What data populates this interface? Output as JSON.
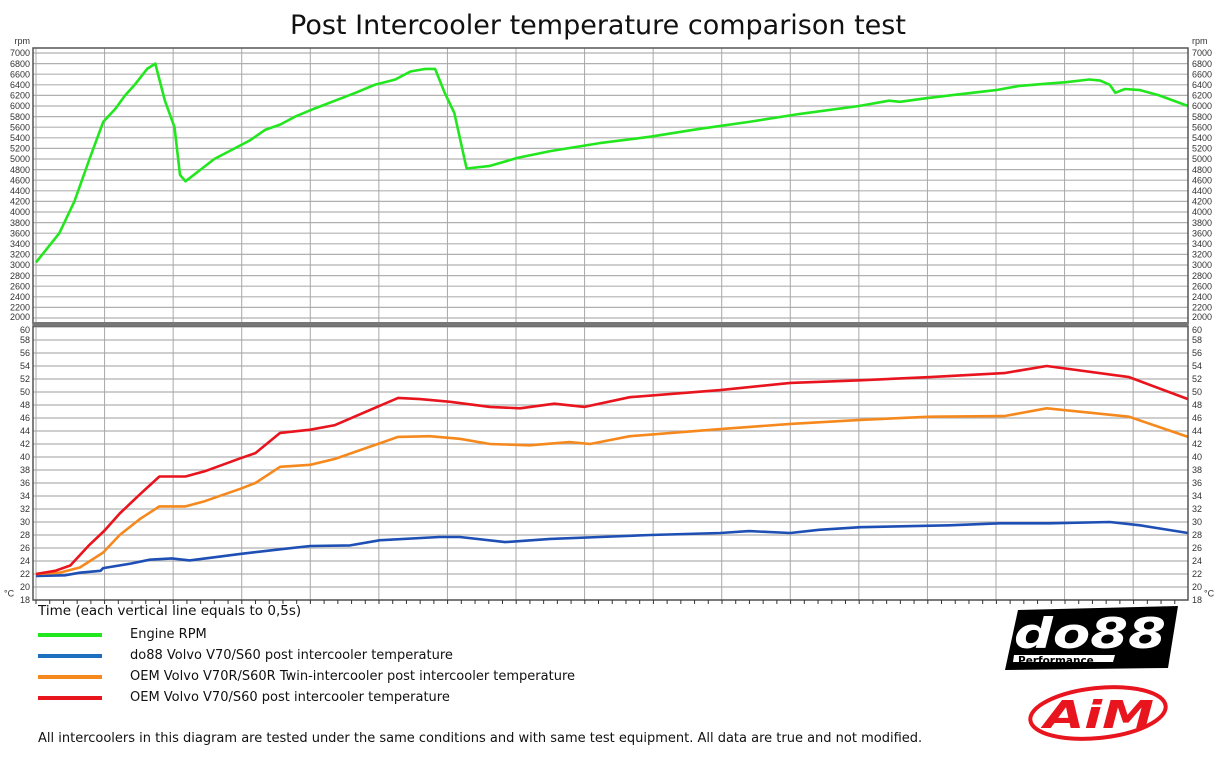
{
  "title": "Post Intercooler temperature comparison test",
  "footnote": "All intercoolers in this diagram are tested under the same conditions and with same test equipment. All data are true and not modified.",
  "logos": {
    "do88_main": "do88",
    "do88_sub": "Performance",
    "aim": "AiM"
  },
  "chart_data": [
    {
      "type": "line",
      "title": "Post Intercooler temperature comparison test",
      "xlabel": "Time (each vertical line equals to 0,5s)",
      "ylabel": "rpm",
      "xlim": [
        0,
        8.4
      ],
      "ylim": [
        2000,
        7000
      ],
      "ytick_step": 200,
      "xgrid_step": 0.5,
      "grid": true,
      "y_axis_both_sides": true,
      "series": [
        {
          "name": "Engine RPM",
          "color": "#22e61e",
          "points": [
            [
              0,
              3050
            ],
            [
              0.17,
              3600
            ],
            [
              0.28,
              4200
            ],
            [
              0.39,
              5000
            ],
            [
              0.49,
              5700
            ],
            [
              0.58,
              5950
            ],
            [
              0.65,
              6200
            ],
            [
              0.72,
              6400
            ],
            [
              0.81,
              6700
            ],
            [
              0.87,
              6800
            ],
            [
              0.9,
              6500
            ],
            [
              0.94,
              6100
            ],
            [
              1.01,
              5600
            ],
            [
              1.05,
              4700
            ],
            [
              1.09,
              4580
            ],
            [
              1.2,
              4800
            ],
            [
              1.3,
              5000
            ],
            [
              1.41,
              5150
            ],
            [
              1.56,
              5350
            ],
            [
              1.67,
              5550
            ],
            [
              1.78,
              5650
            ],
            [
              1.89,
              5800
            ],
            [
              2.03,
              5950
            ],
            [
              2.18,
              6100
            ],
            [
              2.33,
              6250
            ],
            [
              2.47,
              6400
            ],
            [
              2.62,
              6500
            ],
            [
              2.73,
              6650
            ],
            [
              2.84,
              6700
            ],
            [
              2.91,
              6700
            ],
            [
              2.98,
              6250
            ],
            [
              3.05,
              5870
            ],
            [
              3.14,
              4820
            ],
            [
              3.31,
              4870
            ],
            [
              3.51,
              5020
            ],
            [
              3.75,
              5150
            ],
            [
              4.11,
              5300
            ],
            [
              4.48,
              5420
            ],
            [
              4.84,
              5570
            ],
            [
              5.2,
              5700
            ],
            [
              5.57,
              5850
            ],
            [
              6.0,
              6000
            ],
            [
              6.22,
              6100
            ],
            [
              6.3,
              6080
            ],
            [
              6.5,
              6150
            ],
            [
              6.66,
              6200
            ],
            [
              7.0,
              6300
            ],
            [
              7.17,
              6380
            ],
            [
              7.37,
              6420
            ],
            [
              7.51,
              6450
            ],
            [
              7.68,
              6500
            ],
            [
              7.76,
              6480
            ],
            [
              7.83,
              6400
            ],
            [
              7.87,
              6250
            ],
            [
              7.94,
              6320
            ],
            [
              8.05,
              6300
            ],
            [
              8.19,
              6200
            ],
            [
              8.4,
              6000
            ]
          ]
        }
      ]
    },
    {
      "type": "line",
      "xlabel": "Time (each vertical line equals to 0,5s)",
      "ylabel": "°C",
      "xlim": [
        0,
        8.4
      ],
      "ylim": [
        18,
        60
      ],
      "ytick_step": 2,
      "xgrid_step": 0.5,
      "grid": true,
      "y_axis_both_sides": true,
      "series": [
        {
          "name": "do88 Volvo V70/S60 post intercooler temperature",
          "color": "#1e4fb4",
          "points": [
            [
              0,
              21.7
            ],
            [
              0.21,
              21.8
            ],
            [
              0.32,
              22.2
            ],
            [
              0.47,
              22.5
            ],
            [
              0.49,
              22.9
            ],
            [
              0.69,
              23.6
            ],
            [
              0.83,
              24.2
            ],
            [
              0.99,
              24.4
            ],
            [
              1.12,
              24.1
            ],
            [
              1.27,
              24.5
            ],
            [
              1.49,
              25.1
            ],
            [
              1.78,
              25.8
            ],
            [
              2.0,
              26.3
            ],
            [
              2.29,
              26.4
            ],
            [
              2.51,
              27.2
            ],
            [
              2.94,
              27.7
            ],
            [
              3.09,
              27.7
            ],
            [
              3.42,
              26.9
            ],
            [
              3.75,
              27.4
            ],
            [
              4.11,
              27.7
            ],
            [
              4.48,
              28.0
            ],
            [
              4.99,
              28.3
            ],
            [
              5.2,
              28.6
            ],
            [
              5.5,
              28.3
            ],
            [
              5.71,
              28.8
            ],
            [
              6.01,
              29.2
            ],
            [
              6.66,
              29.5
            ],
            [
              7.03,
              29.8
            ],
            [
              7.39,
              29.8
            ],
            [
              7.83,
              30.0
            ],
            [
              8.05,
              29.5
            ],
            [
              8.4,
              28.3
            ]
          ]
        },
        {
          "name": "OEM Volvo V70R/S60R Twin-intercooler post intercooler temperature",
          "color": "#f5891e",
          "points": [
            [
              0,
              22
            ],
            [
              0.17,
              22.2
            ],
            [
              0.32,
              23
            ],
            [
              0.49,
              25.3
            ],
            [
              0.61,
              28
            ],
            [
              0.76,
              30.5
            ],
            [
              0.9,
              32.4
            ],
            [
              1.09,
              32.4
            ],
            [
              1.23,
              33.2
            ],
            [
              1.49,
              35.1
            ],
            [
              1.6,
              36.0
            ],
            [
              1.78,
              38.5
            ],
            [
              2.0,
              38.8
            ],
            [
              2.18,
              39.7
            ],
            [
              2.64,
              43.1
            ],
            [
              2.87,
              43.2
            ],
            [
              3.09,
              42.8
            ],
            [
              3.31,
              42.0
            ],
            [
              3.6,
              41.8
            ],
            [
              3.89,
              42.3
            ],
            [
              4.04,
              42.0
            ],
            [
              4.33,
              43.2
            ],
            [
              4.99,
              44.3
            ],
            [
              5.5,
              45.1
            ],
            [
              6.01,
              45.7
            ],
            [
              6.52,
              46.2
            ],
            [
              7.06,
              46.3
            ],
            [
              7.37,
              47.5
            ],
            [
              7.97,
              46.2
            ],
            [
              8.4,
              43.1
            ]
          ]
        },
        {
          "name": "OEM Volvo V70/S60 post intercooler temperature",
          "color": "#e8141e",
          "points": [
            [
              0,
              22
            ],
            [
              0.14,
              22.5
            ],
            [
              0.25,
              23.3
            ],
            [
              0.39,
              26.5
            ],
            [
              0.5,
              28.7
            ],
            [
              0.61,
              31.3
            ],
            [
              0.76,
              34.3
            ],
            [
              0.9,
              37
            ],
            [
              1.09,
              37
            ],
            [
              1.23,
              37.8
            ],
            [
              1.49,
              39.8
            ],
            [
              1.6,
              40.6
            ],
            [
              1.78,
              43.7
            ],
            [
              2.0,
              44.2
            ],
            [
              2.18,
              44.9
            ],
            [
              2.64,
              49.1
            ],
            [
              2.8,
              48.9
            ],
            [
              3.02,
              48.5
            ],
            [
              3.31,
              47.7
            ],
            [
              3.53,
              47.5
            ],
            [
              3.78,
              48.2
            ],
            [
              4.0,
              47.7
            ],
            [
              4.33,
              49.2
            ],
            [
              4.99,
              50.3
            ],
            [
              5.5,
              51.4
            ],
            [
              6.01,
              51.8
            ],
            [
              6.52,
              52.3
            ],
            [
              7.06,
              52.9
            ],
            [
              7.37,
              54.0
            ],
            [
              7.97,
              52.3
            ],
            [
              8.4,
              48.9
            ]
          ]
        }
      ]
    }
  ],
  "legend": [
    {
      "label": "Engine RPM",
      "color": "#22e61e"
    },
    {
      "label": "do88 Volvo V70/S60 post intercooler temperature",
      "color": "#1e6fc0"
    },
    {
      "label": "OEM Volvo V70R/S60R Twin-intercooler post intercooler temperature",
      "color": "#f5891e"
    },
    {
      "label": "OEM Volvo V70/S60 post intercooler temperature",
      "color": "#e8141e"
    }
  ]
}
